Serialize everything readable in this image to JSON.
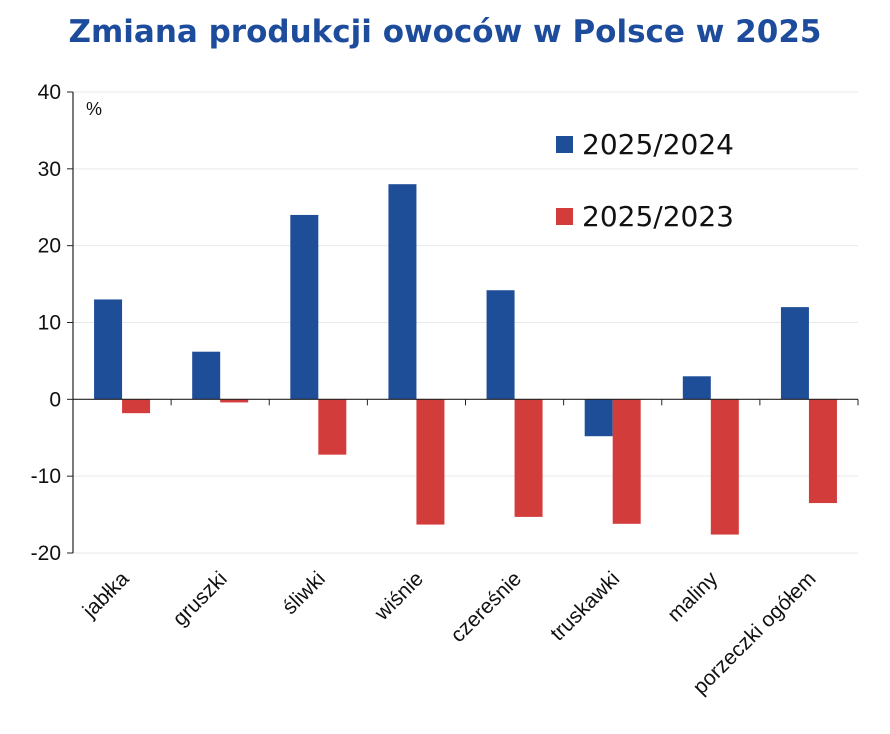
{
  "chart_data": {
    "type": "bar",
    "title": "Zmiana produkcji owoców w Polsce w 2025",
    "unit": "%",
    "categories": [
      "jabłka",
      "gruszki",
      "śliwki",
      "wiśnie",
      "czereśnie",
      "truskawki",
      "maliny",
      "porzeczki ogółem"
    ],
    "series": [
      {
        "name": "2025/2024",
        "color": "#1f4e99",
        "values": [
          13,
          6.2,
          24,
          28,
          14.2,
          -4.8,
          3,
          12
        ]
      },
      {
        "name": "2025/2023",
        "color": "#d23c3a",
        "values": [
          -1.8,
          -0.4,
          -7.2,
          -16.3,
          -15.3,
          -16.2,
          -17.6,
          -13.5
        ]
      }
    ],
    "yticks": [
      "40",
      "30",
      "20",
      "10",
      "0",
      "-10",
      "-20"
    ],
    "ylim": [
      -20,
      40
    ],
    "grid": true,
    "legend_position": "top-right",
    "xlabel": "",
    "ylabel": ""
  }
}
